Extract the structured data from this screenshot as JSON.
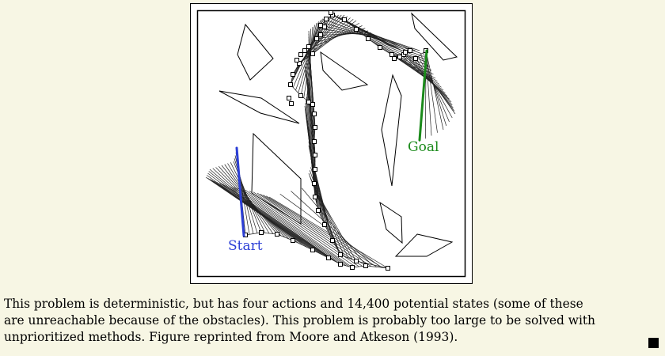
{
  "figure": {
    "goal_label": "Goal",
    "start_label": "Start",
    "colors": {
      "background": "#f7f6e4",
      "goal": "#1a8a1a",
      "start": "#2c3fd6",
      "ink": "#000000"
    }
  },
  "caption": {
    "lines": [
      "This problem is deterministic, but has four actions and 14,400 potential states (some of these",
      "are unreachable because of the obstacles). This problem is probably too large to be solved with",
      "unprioritized methods. Figure reprinted from Moore and Atkeson (1993)."
    ]
  }
}
